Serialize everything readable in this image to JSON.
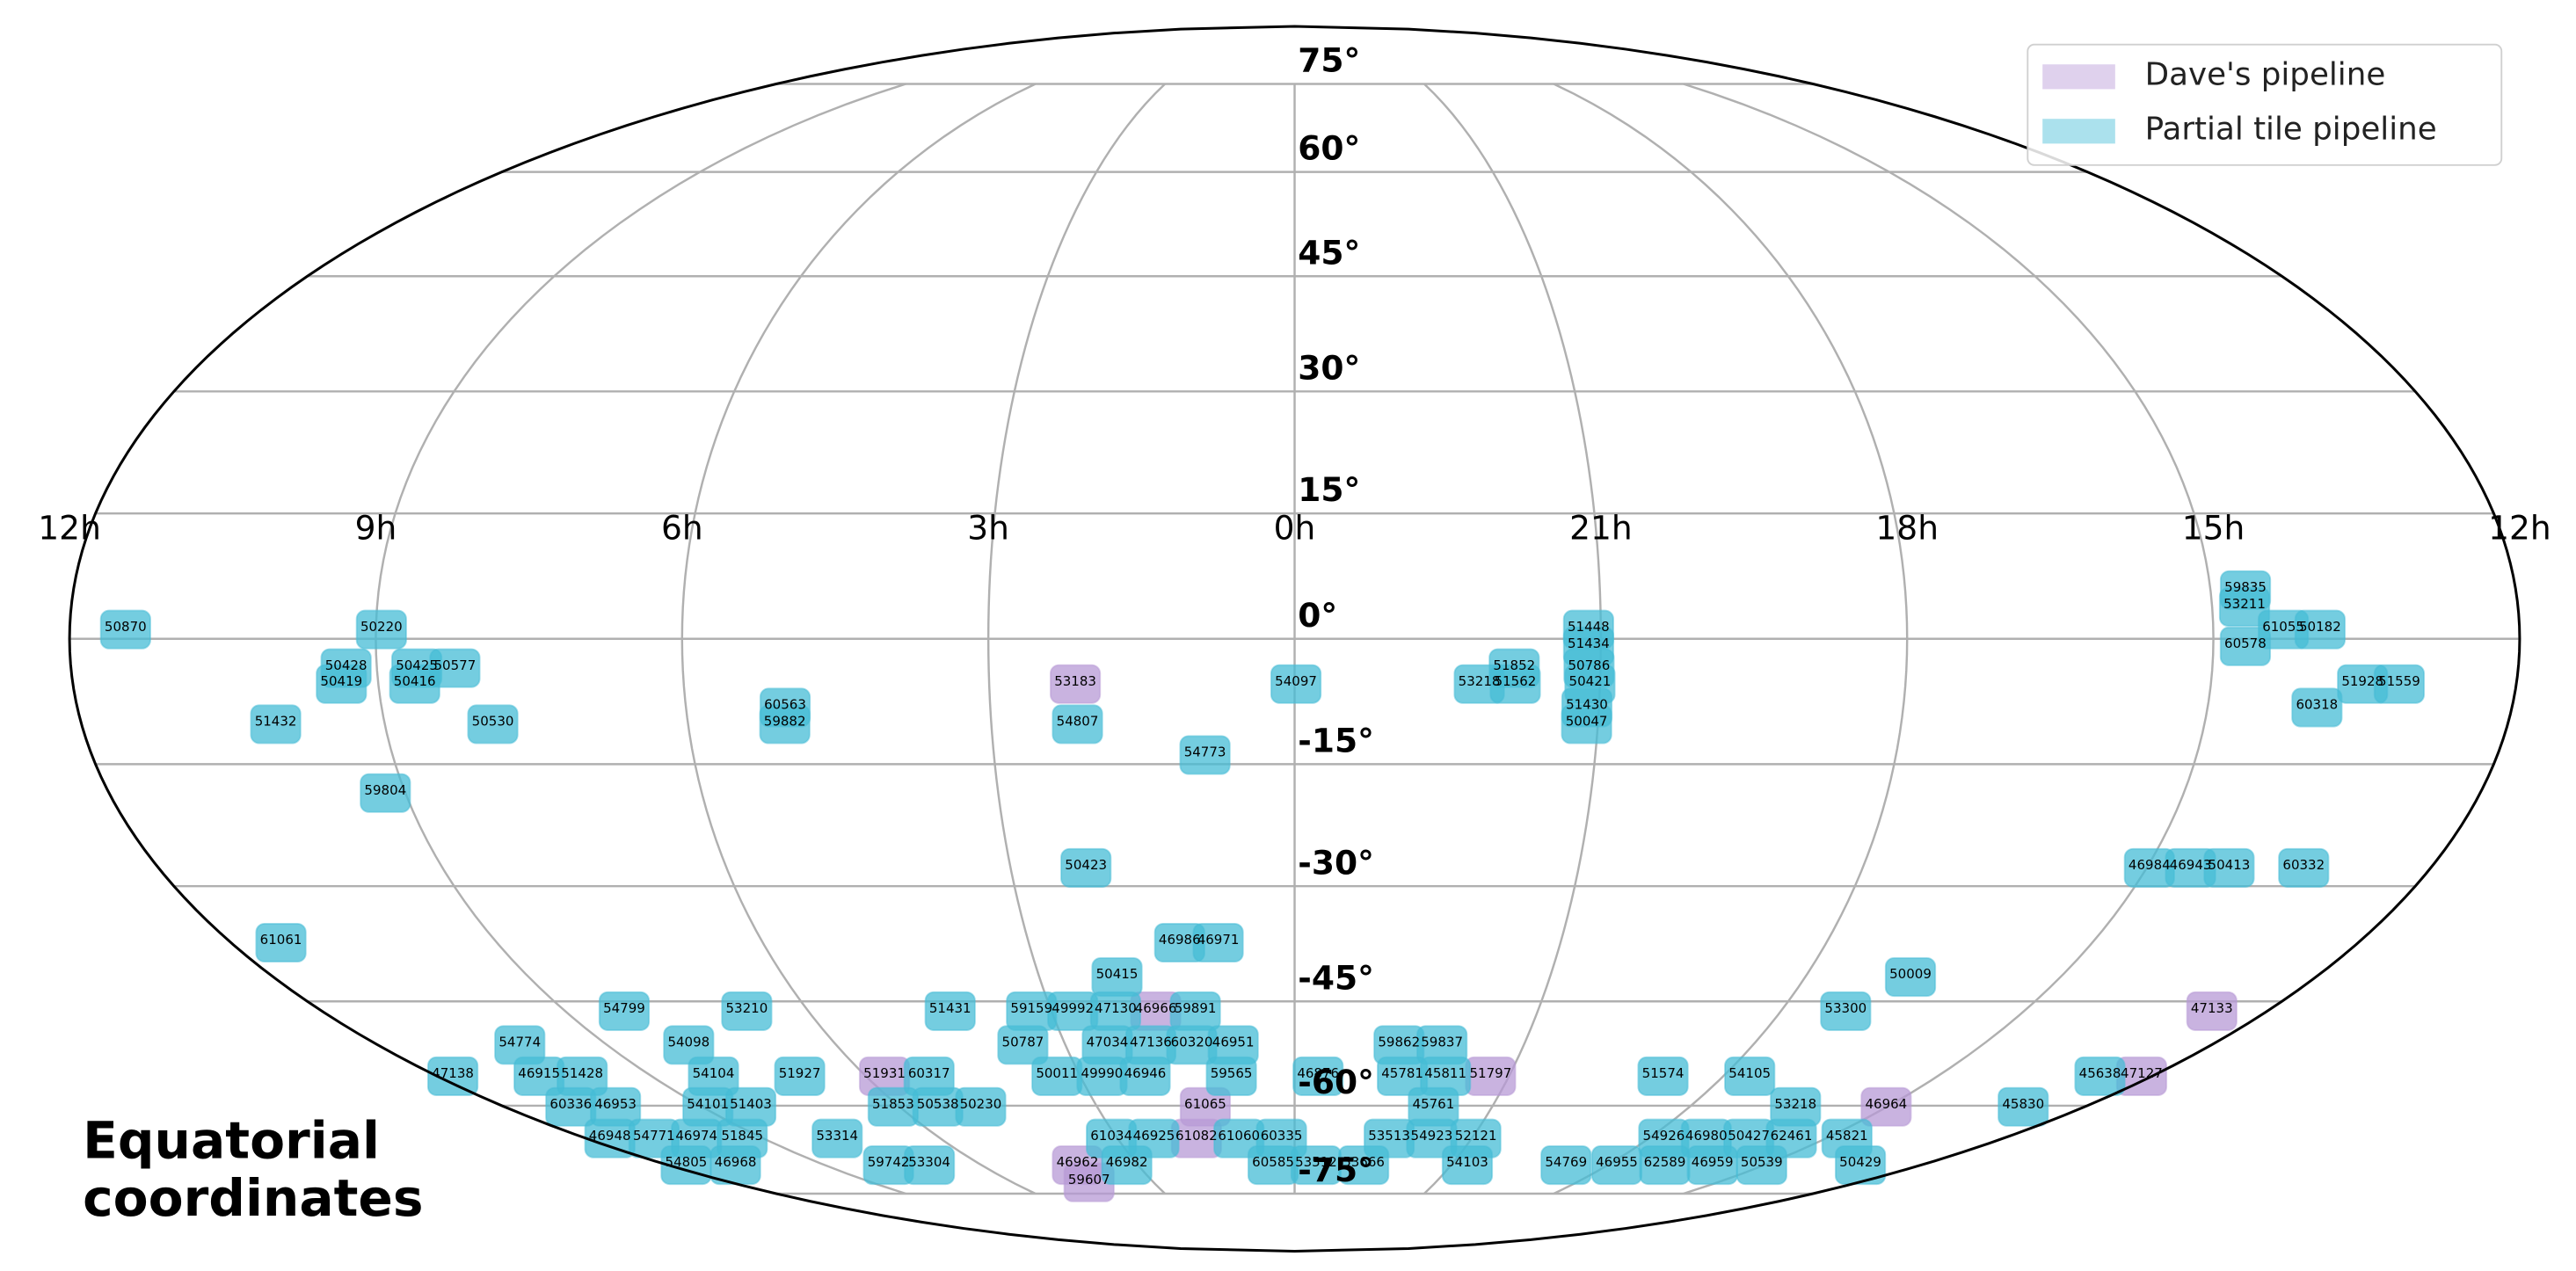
{
  "chart_data": {
    "type": "scatter",
    "projection": "mollweide",
    "annotation": [
      "Equatorial",
      "coordinates"
    ],
    "xlim": [
      180,
      -180
    ],
    "ylim": [
      -90,
      90
    ],
    "xticks": [
      {
        "value": 180,
        "label": "12h"
      },
      {
        "value": 135,
        "label": "9h"
      },
      {
        "value": 90,
        "label": "6h"
      },
      {
        "value": 45,
        "label": "3h"
      },
      {
        "value": 0,
        "label": "0h"
      },
      {
        "value": -45,
        "label": "21h"
      },
      {
        "value": -90,
        "label": "18h"
      },
      {
        "value": -135,
        "label": "15h"
      },
      {
        "value": -180,
        "label": "12h"
      }
    ],
    "yticks": [
      {
        "value": 75,
        "label": "75°"
      },
      {
        "value": 60,
        "label": "60°"
      },
      {
        "value": 45,
        "label": "45°"
      },
      {
        "value": 30,
        "label": "30°"
      },
      {
        "value": 15,
        "label": "15°"
      },
      {
        "value": 0,
        "label": "0°"
      },
      {
        "value": -15,
        "label": "-15°"
      },
      {
        "value": -30,
        "label": "-30°"
      },
      {
        "value": -45,
        "label": "-45°"
      },
      {
        "value": -60,
        "label": "-60°"
      },
      {
        "value": -75,
        "label": "-75°"
      }
    ],
    "grid": true,
    "legend": "upper right",
    "series": [
      {
        "name": "Dave's pipeline",
        "color": "#b79ad6",
        "labels": [
          "53183",
          "46966",
          "47133",
          "51931",
          "51797",
          "47127",
          "61065",
          "46964",
          "61082",
          "46962",
          "59607"
        ],
        "x": [
          32.3,
          25.6,
          -169.1,
          85.6,
          -40.9,
          -176.8,
          20.2,
          -133.8,
          24.7,
          61.6,
          64.5
        ],
        "y": [
          -5.1,
          -46,
          -46,
          -55.2,
          -55.2,
          -55.2,
          -59.8,
          -59.8,
          -64.8,
          -69.3,
          -72.4
        ]
      },
      {
        "name": "Partial tile pipeline",
        "color": "#45bcd6",
        "labels": [
          "59835",
          "53211",
          "50870",
          "50220",
          "51448",
          "61055",
          "50182",
          "60578",
          "51434",
          "50428",
          "50425",
          "50577",
          "51852",
          "50786",
          "50419",
          "50416",
          "54097",
          "53218",
          "51562",
          "50421",
          "51928",
          "51559",
          "60563",
          "51430",
          "60318",
          "51432",
          "50530",
          "59882",
          "54807",
          "50047",
          "54773",
          "59804",
          "50423",
          "46984",
          "46943",
          "50413",
          "60332",
          "61061",
          "46986",
          "46971",
          "50415",
          "50009",
          "54799",
          "53210",
          "51431",
          "59159",
          "49992",
          "47130",
          "59891",
          "53300",
          "54774",
          "54098",
          "50787",
          "47034",
          "47136",
          "60320",
          "46951",
          "59862",
          "59837",
          "47138",
          "46915",
          "51428",
          "54104",
          "51927",
          "60317",
          "50011",
          "49990",
          "46946",
          "59565",
          "46876",
          "45781",
          "45811",
          "51574",
          "54105",
          "45638",
          "60336",
          "46953",
          "54101",
          "51403",
          "51853",
          "50538",
          "50230",
          "45761",
          "53218",
          "45830",
          "46948",
          "54771",
          "46974",
          "51845",
          "53314",
          "61034",
          "46925",
          "61060",
          "60335",
          "53513",
          "54923",
          "52121",
          "54926",
          "46980",
          "50427",
          "62461",
          "45821",
          "54805",
          "46968",
          "59742",
          "53304",
          "46982",
          "60585",
          "53512",
          "53666",
          "54103",
          "54769",
          "46955",
          "62589",
          "46959",
          "50539",
          "50429"
        ],
        "x": [
          -140.2,
          -139.8,
          171.8,
          134.2,
          -43.2,
          -145.3,
          -150.7,
          -139.7,
          -43.2,
          139.5,
          129.1,
          123.5,
          -32.3,
          -43.3,
          140.4,
          129.6,
          -0.2,
          -27.2,
          -32.5,
          -43.5,
          -157.3,
          -162.7,
          75.3,
          -43.2,
          -151.1,
          151.1,
          118.9,
          75.6,
          32.2,
          -43.3,
          13.4,
          137.9,
          33.0,
          -135.2,
          -141.7,
          -147.8,
          -159.6,
          171.1,
          19.4,
          12.9,
          31.2,
          -108.2,
          123.6,
          101.0,
          63.5,
          48.5,
          40.9,
          33.0,
          18.3,
          -101.6,
          151.4,
          118.4,
          53.1,
          36.6,
          28.1,
          20.1,
          12.0,
          -20.4,
          -28.8,
          175.7,
          157.7,
          148.7,
          121.3,
          103.3,
          76.3,
          49.6,
          40.2,
          31.2,
          13.2,
          -4.9,
          -22.5,
          -31.5,
          -76.9,
          -95.0,
          -168.1,
          163.7,
          153.6,
          132.7,
          123.0,
          90.8,
          80.7,
          71.0,
          -31.4,
          -113.3,
          -164.8,
          172.3,
          161.2,
          150.5,
          139.0,
          115.1,
          46.1,
          35.4,
          14.0,
          3.3,
          -23.8,
          -34.5,
          -45.6,
          -92.9,
          -103.6,
          -114.3,
          -125.0,
          -139.0,
          172.6,
          158.6,
          115.2,
          103.6,
          47.6,
          6.1,
          -6.1,
          -19.6,
          -49.0,
          -77.0,
          -91.4,
          -105.0,
          -118.5,
          -132.5,
          -160.5
        ],
        "y": [
          6.1,
          4.1,
          1.4,
          1.4,
          1.4,
          1.4,
          1.4,
          -0.6,
          -0.6,
          -3.2,
          -3.2,
          -3.2,
          -3.2,
          -3.2,
          -5.1,
          -5.1,
          -5.1,
          -5.1,
          -5.1,
          -5.1,
          -5.1,
          -5.1,
          -7.9,
          -7.9,
          -7.9,
          -9.9,
          -9.9,
          -9.9,
          -9.9,
          -9.9,
          -13.6,
          -18.2,
          -27.4,
          -27.4,
          -27.4,
          -27.4,
          -27.4,
          -36.9,
          -36.9,
          -36.9,
          -41.4,
          -41.4,
          -46,
          -46,
          -46,
          -46,
          -46,
          -46,
          -46,
          -46,
          -50.7,
          -50.7,
          -50.7,
          -50.7,
          -50.7,
          -50.7,
          -50.7,
          -50.7,
          -50.7,
          -55.2,
          -55.2,
          -55.2,
          -55.2,
          -55.2,
          -55.2,
          -55.2,
          -55.2,
          -55.2,
          -55.2,
          -55.2,
          -55.2,
          -55.2,
          -55.2,
          -55.2,
          -55.2,
          -59.8,
          -59.8,
          -59.8,
          -59.8,
          -59.8,
          -59.8,
          -59.8,
          -59.8,
          -59.8,
          -59.8,
          -64.8,
          -64.8,
          -64.8,
          -64.8,
          -64.8,
          -64.8,
          -64.8,
          -64.8,
          -64.8,
          -64.8,
          -64.8,
          -64.8,
          -64.8,
          -64.8,
          -64.8,
          -64.8,
          -64.8,
          -69.3,
          -69.3,
          -69.3,
          -69.3,
          -69.3,
          -69.3,
          -69.3,
          -69.3,
          -69.3,
          -69.3,
          -69.3,
          -69.3,
          -69.3,
          -69.3,
          -69.3
        ]
      }
    ]
  }
}
